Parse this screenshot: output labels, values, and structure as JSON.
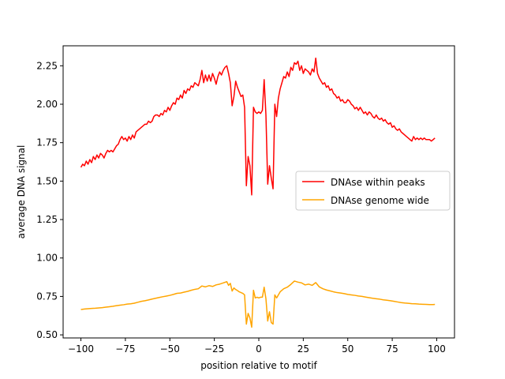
{
  "chart_data": {
    "type": "line",
    "title": "",
    "xlabel": "position relative to motif",
    "ylabel": "average DNA signal",
    "xlim": [
      -110,
      110
    ],
    "ylim": [
      0.48,
      2.38
    ],
    "xticks": [
      -100,
      -75,
      -50,
      -25,
      0,
      25,
      50,
      75,
      100
    ],
    "xtick_labels": [
      "−100",
      "−75",
      "−50",
      "−25",
      "0",
      "25",
      "50",
      "75",
      "100"
    ],
    "yticks": [
      0.5,
      0.75,
      1.0,
      1.25,
      1.5,
      1.75,
      2.0,
      2.25
    ],
    "ytick_labels": [
      "0.50",
      "0.75",
      "1.00",
      "1.25",
      "1.50",
      "1.75",
      "2.00",
      "2.25"
    ],
    "grid": false,
    "legend_position": "center-right",
    "series": [
      {
        "name": "DNAse within peaks",
        "color": "#ff0000",
        "points": [
          [
            -100,
            1.59
          ],
          [
            -99,
            1.61
          ],
          [
            -98,
            1.6
          ],
          [
            -97,
            1.63
          ],
          [
            -96,
            1.61
          ],
          [
            -95,
            1.64
          ],
          [
            -94,
            1.62
          ],
          [
            -93,
            1.66
          ],
          [
            -92,
            1.64
          ],
          [
            -91,
            1.67
          ],
          [
            -90,
            1.65
          ],
          [
            -89,
            1.68
          ],
          [
            -88,
            1.67
          ],
          [
            -87,
            1.65
          ],
          [
            -86,
            1.68
          ],
          [
            -85,
            1.7
          ],
          [
            -84,
            1.69
          ],
          [
            -83,
            1.7
          ],
          [
            -82,
            1.69
          ],
          [
            -81,
            1.71
          ],
          [
            -80,
            1.73
          ],
          [
            -79,
            1.74
          ],
          [
            -78,
            1.77
          ],
          [
            -77,
            1.79
          ],
          [
            -76,
            1.77
          ],
          [
            -75,
            1.78
          ],
          [
            -74,
            1.76
          ],
          [
            -73,
            1.79
          ],
          [
            -72,
            1.77
          ],
          [
            -71,
            1.8
          ],
          [
            -70,
            1.78
          ],
          [
            -69,
            1.82
          ],
          [
            -68,
            1.83
          ],
          [
            -67,
            1.84
          ],
          [
            -66,
            1.85
          ],
          [
            -65,
            1.86
          ],
          [
            -64,
            1.87
          ],
          [
            -63,
            1.87
          ],
          [
            -62,
            1.89
          ],
          [
            -61,
            1.88
          ],
          [
            -60,
            1.89
          ],
          [
            -59,
            1.92
          ],
          [
            -58,
            1.93
          ],
          [
            -57,
            1.93
          ],
          [
            -56,
            1.92
          ],
          [
            -55,
            1.94
          ],
          [
            -54,
            1.93
          ],
          [
            -53,
            1.96
          ],
          [
            -52,
            1.95
          ],
          [
            -51,
            1.98
          ],
          [
            -50,
            1.96
          ],
          [
            -49,
            1.99
          ],
          [
            -48,
            2.01
          ],
          [
            -47,
            2.0
          ],
          [
            -46,
            2.04
          ],
          [
            -45,
            2.03
          ],
          [
            -44,
            2.06
          ],
          [
            -43,
            2.04
          ],
          [
            -42,
            2.09
          ],
          [
            -41,
            2.07
          ],
          [
            -40,
            2.1
          ],
          [
            -39,
            2.09
          ],
          [
            -38,
            2.12
          ],
          [
            -37,
            2.11
          ],
          [
            -36,
            2.14
          ],
          [
            -35,
            2.13
          ],
          [
            -34,
            2.12
          ],
          [
            -33,
            2.16
          ],
          [
            -32,
            2.22
          ],
          [
            -31,
            2.14
          ],
          [
            -30,
            2.19
          ],
          [
            -29,
            2.15
          ],
          [
            -28,
            2.19
          ],
          [
            -27,
            2.15
          ],
          [
            -26,
            2.2
          ],
          [
            -25,
            2.17
          ],
          [
            -24,
            2.13
          ],
          [
            -23,
            2.18
          ],
          [
            -22,
            2.21
          ],
          [
            -21,
            2.19
          ],
          [
            -20,
            2.22
          ],
          [
            -19,
            2.24
          ],
          [
            -18,
            2.25
          ],
          [
            -17,
            2.2
          ],
          [
            -16,
            2.14
          ],
          [
            -15,
            1.99
          ],
          [
            -14,
            2.05
          ],
          [
            -13,
            2.15
          ],
          [
            -12,
            2.11
          ],
          [
            -11,
            2.08
          ],
          [
            -10,
            2.05
          ],
          [
            -9,
            2.06
          ],
          [
            -8,
            1.98
          ],
          [
            -7,
            1.47
          ],
          [
            -6,
            1.66
          ],
          [
            -5,
            1.6
          ],
          [
            -4,
            1.41
          ],
          [
            -3,
            1.98
          ],
          [
            -2,
            1.95
          ],
          [
            -1,
            1.94
          ],
          [
            0,
            1.95
          ],
          [
            1,
            1.94
          ],
          [
            2,
            1.96
          ],
          [
            3,
            2.16
          ],
          [
            4,
            1.93
          ],
          [
            5,
            1.48
          ],
          [
            6,
            1.6
          ],
          [
            7,
            1.52
          ],
          [
            8,
            1.45
          ],
          [
            9,
            2.0
          ],
          [
            10,
            1.92
          ],
          [
            11,
            2.04
          ],
          [
            12,
            2.1
          ],
          [
            13,
            2.14
          ],
          [
            14,
            2.18
          ],
          [
            15,
            2.17
          ],
          [
            16,
            2.21
          ],
          [
            17,
            2.18
          ],
          [
            18,
            2.24
          ],
          [
            19,
            2.22
          ],
          [
            20,
            2.27
          ],
          [
            21,
            2.26
          ],
          [
            22,
            2.28
          ],
          [
            23,
            2.22
          ],
          [
            24,
            2.25
          ],
          [
            25,
            2.2
          ],
          [
            26,
            2.23
          ],
          [
            27,
            2.22
          ],
          [
            28,
            2.21
          ],
          [
            29,
            2.19
          ],
          [
            30,
            2.23
          ],
          [
            31,
            2.21
          ],
          [
            32,
            2.3
          ],
          [
            33,
            2.2
          ],
          [
            34,
            2.17
          ],
          [
            35,
            2.15
          ],
          [
            36,
            2.13
          ],
          [
            37,
            2.14
          ],
          [
            38,
            2.11
          ],
          [
            39,
            2.12
          ],
          [
            40,
            2.09
          ],
          [
            41,
            2.1
          ],
          [
            42,
            2.07
          ],
          [
            43,
            2.06
          ],
          [
            44,
            2.04
          ],
          [
            45,
            2.05
          ],
          [
            46,
            2.02
          ],
          [
            47,
            2.03
          ],
          [
            48,
            2.01
          ],
          [
            49,
            2.01
          ],
          [
            50,
            2.03
          ],
          [
            51,
            2.02
          ],
          [
            52,
            2.0
          ],
          [
            53,
            1.99
          ],
          [
            54,
            1.97
          ],
          [
            55,
            1.98
          ],
          [
            56,
            1.96
          ],
          [
            57,
            1.98
          ],
          [
            58,
            1.96
          ],
          [
            59,
            1.94
          ],
          [
            60,
            1.95
          ],
          [
            61,
            1.93
          ],
          [
            62,
            1.95
          ],
          [
            63,
            1.94
          ],
          [
            64,
            1.92
          ],
          [
            65,
            1.91
          ],
          [
            66,
            1.93
          ],
          [
            67,
            1.91
          ],
          [
            68,
            1.9
          ],
          [
            69,
            1.91
          ],
          [
            70,
            1.89
          ],
          [
            71,
            1.9
          ],
          [
            72,
            1.88
          ],
          [
            73,
            1.87
          ],
          [
            74,
            1.88
          ],
          [
            75,
            1.85
          ],
          [
            76,
            1.86
          ],
          [
            77,
            1.84
          ],
          [
            78,
            1.83
          ],
          [
            79,
            1.84
          ],
          [
            80,
            1.82
          ],
          [
            81,
            1.81
          ],
          [
            82,
            1.8
          ],
          [
            83,
            1.79
          ],
          [
            84,
            1.78
          ],
          [
            85,
            1.77
          ],
          [
            86,
            1.76
          ],
          [
            87,
            1.79
          ],
          [
            88,
            1.77
          ],
          [
            89,
            1.78
          ],
          [
            90,
            1.77
          ],
          [
            91,
            1.78
          ],
          [
            92,
            1.77
          ],
          [
            93,
            1.78
          ],
          [
            94,
            1.77
          ],
          [
            95,
            1.77
          ],
          [
            96,
            1.77
          ],
          [
            97,
            1.76
          ],
          [
            98,
            1.77
          ],
          [
            99,
            1.78
          ]
        ]
      },
      {
        "name": "DNAse genome wide",
        "color": "#ffa500",
        "points": [
          [
            -100,
            0.665
          ],
          [
            -98,
            0.668
          ],
          [
            -96,
            0.67
          ],
          [
            -94,
            0.672
          ],
          [
            -92,
            0.673
          ],
          [
            -90,
            0.675
          ],
          [
            -88,
            0.677
          ],
          [
            -86,
            0.68
          ],
          [
            -84,
            0.683
          ],
          [
            -82,
            0.686
          ],
          [
            -80,
            0.69
          ],
          [
            -78,
            0.693
          ],
          [
            -76,
            0.696
          ],
          [
            -74,
            0.7
          ],
          [
            -72,
            0.702
          ],
          [
            -70,
            0.706
          ],
          [
            -68,
            0.712
          ],
          [
            -66,
            0.718
          ],
          [
            -64,
            0.722
          ],
          [
            -62,
            0.727
          ],
          [
            -60,
            0.733
          ],
          [
            -58,
            0.738
          ],
          [
            -56,
            0.743
          ],
          [
            -54,
            0.748
          ],
          [
            -52,
            0.752
          ],
          [
            -50,
            0.757
          ],
          [
            -48,
            0.763
          ],
          [
            -46,
            0.77
          ],
          [
            -44,
            0.772
          ],
          [
            -42,
            0.778
          ],
          [
            -40,
            0.783
          ],
          [
            -38,
            0.79
          ],
          [
            -36,
            0.796
          ],
          [
            -34,
            0.8
          ],
          [
            -32,
            0.818
          ],
          [
            -30,
            0.812
          ],
          [
            -28,
            0.82
          ],
          [
            -26,
            0.815
          ],
          [
            -24,
            0.825
          ],
          [
            -22,
            0.83
          ],
          [
            -20,
            0.838
          ],
          [
            -18,
            0.846
          ],
          [
            -17,
            0.822
          ],
          [
            -16,
            0.835
          ],
          [
            -15,
            0.785
          ],
          [
            -14,
            0.805
          ],
          [
            -13,
            0.795
          ],
          [
            -12,
            0.788
          ],
          [
            -11,
            0.78
          ],
          [
            -10,
            0.775
          ],
          [
            -9,
            0.77
          ],
          [
            -8,
            0.76
          ],
          [
            -7,
            0.57
          ],
          [
            -6,
            0.64
          ],
          [
            -5,
            0.61
          ],
          [
            -4,
            0.55
          ],
          [
            -3,
            0.79
          ],
          [
            -2,
            0.74
          ],
          [
            -1,
            0.745
          ],
          [
            0,
            0.74
          ],
          [
            1,
            0.745
          ],
          [
            2,
            0.745
          ],
          [
            3,
            0.81
          ],
          [
            4,
            0.735
          ],
          [
            5,
            0.59
          ],
          [
            6,
            0.65
          ],
          [
            7,
            0.58
          ],
          [
            8,
            0.57
          ],
          [
            9,
            0.76
          ],
          [
            10,
            0.74
          ],
          [
            12,
            0.78
          ],
          [
            14,
            0.8
          ],
          [
            16,
            0.81
          ],
          [
            18,
            0.828
          ],
          [
            20,
            0.85
          ],
          [
            22,
            0.843
          ],
          [
            24,
            0.838
          ],
          [
            26,
            0.825
          ],
          [
            28,
            0.83
          ],
          [
            30,
            0.822
          ],
          [
            32,
            0.84
          ],
          [
            34,
            0.812
          ],
          [
            36,
            0.8
          ],
          [
            38,
            0.792
          ],
          [
            40,
            0.786
          ],
          [
            42,
            0.78
          ],
          [
            44,
            0.775
          ],
          [
            46,
            0.772
          ],
          [
            48,
            0.768
          ],
          [
            50,
            0.763
          ],
          [
            52,
            0.76
          ],
          [
            54,
            0.757
          ],
          [
            56,
            0.753
          ],
          [
            58,
            0.75
          ],
          [
            60,
            0.746
          ],
          [
            62,
            0.742
          ],
          [
            64,
            0.738
          ],
          [
            66,
            0.735
          ],
          [
            68,
            0.732
          ],
          [
            70,
            0.728
          ],
          [
            72,
            0.725
          ],
          [
            74,
            0.722
          ],
          [
            76,
            0.718
          ],
          [
            78,
            0.714
          ],
          [
            80,
            0.71
          ],
          [
            82,
            0.707
          ],
          [
            84,
            0.705
          ],
          [
            86,
            0.703
          ],
          [
            88,
            0.702
          ],
          [
            90,
            0.7
          ],
          [
            92,
            0.699
          ],
          [
            94,
            0.698
          ],
          [
            96,
            0.697
          ],
          [
            98,
            0.697
          ],
          [
            99,
            0.698
          ]
        ]
      }
    ]
  }
}
